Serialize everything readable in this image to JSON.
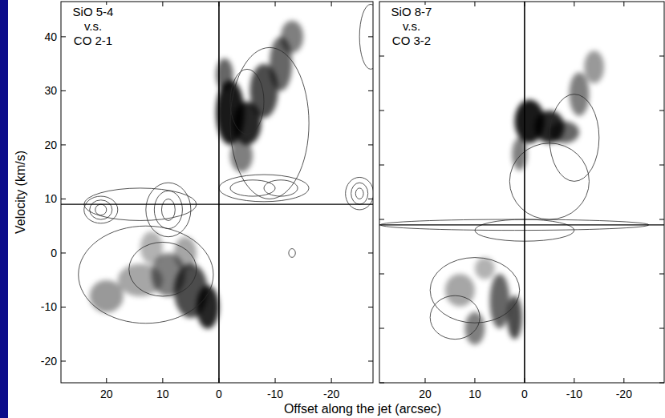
{
  "chart_data": [
    {
      "type": "pv",
      "annotation": [
        "SiO 5-4",
        "v.s.",
        "CO 2-1"
      ],
      "y_label": "Velocity (km/s)",
      "x_label": "Offset along the jet (arcsec)",
      "xlim": [
        28.1,
        -27.4
      ],
      "ylim": [
        -24,
        46.5
      ],
      "xticks": [
        20,
        10,
        0,
        -10,
        -20
      ],
      "yticks": [
        -20,
        -10,
        0,
        10,
        20,
        30,
        40
      ],
      "x_line": 0,
      "y_line": 9,
      "color": "#000000",
      "emission": {
        "cx": [
          5,
          2,
          9,
          14,
          20,
          12,
          6,
          -2,
          -5,
          -8,
          -11,
          -13,
          -4,
          -1
        ],
        "cy": [
          -7,
          -10,
          -4,
          -5,
          -8,
          1,
          0,
          26,
          24,
          30,
          35,
          40,
          18,
          33
        ],
        "rx": [
          3,
          2,
          3,
          4,
          3,
          2,
          2,
          2.5,
          2.5,
          2.5,
          2,
          2,
          2,
          1.5
        ],
        "ry": [
          5,
          4,
          4,
          3,
          3,
          3,
          3,
          6,
          4,
          5,
          5,
          3,
          3,
          3
        ],
        "intensity": [
          0.7,
          0.85,
          0.5,
          0.35,
          0.4,
          0.3,
          0.35,
          0.9,
          0.85,
          0.7,
          0.6,
          0.5,
          0.5,
          0.6
        ]
      },
      "contours": {
        "cx": [
          21,
          21,
          21,
          9,
          9,
          9,
          14,
          -8,
          -6,
          -11,
          -25,
          -25,
          -25,
          13,
          10,
          -9,
          -5,
          -27,
          -13
        ],
        "cy": [
          8,
          8,
          8,
          8,
          8,
          8,
          9,
          12,
          12,
          12,
          11,
          11,
          11,
          -4,
          -3,
          24,
          28,
          40,
          0
        ],
        "rx": [
          3,
          2,
          1,
          4,
          2.5,
          1.2,
          10,
          8,
          4,
          3,
          2.5,
          1.5,
          0.7,
          12,
          6,
          7,
          3,
          2,
          0.6
        ],
        "ry": [
          2.5,
          1.8,
          1,
          5,
          3.5,
          2,
          3,
          2.5,
          1.5,
          1.5,
          3,
          2,
          1,
          9,
          5,
          14,
          6,
          6,
          0.8
        ]
      }
    },
    {
      "type": "pv",
      "annotation": [
        "SiO 8-7",
        "v.s.",
        "CO 3-2"
      ],
      "xlim": [
        29.2,
        -28.1
      ],
      "ylim": [
        -20,
        50
      ],
      "xticks": [
        20,
        10,
        0,
        -10,
        -20
      ],
      "yticks": [
        -20,
        -10,
        0,
        10,
        20,
        30,
        40
      ],
      "tick_labels": "x",
      "x_line": 0,
      "y_line": 9,
      "color": "#000000",
      "emission": {
        "cx": [
          -1,
          -5,
          -8,
          -11,
          -14,
          1,
          5,
          2,
          10,
          13,
          8
        ],
        "cy": [
          28,
          27,
          26,
          33,
          38,
          22,
          -5,
          -8,
          -10,
          -3,
          1
        ],
        "rx": [
          3,
          3,
          3,
          2,
          2,
          1.5,
          2,
          1.5,
          2,
          3,
          2
        ],
        "ry": [
          4,
          3,
          2,
          4,
          3,
          3,
          5,
          4,
          3,
          3,
          2
        ],
        "intensity": [
          0.9,
          0.85,
          0.6,
          0.5,
          0.4,
          0.5,
          0.6,
          0.7,
          0.5,
          0.35,
          0.3
        ]
      },
      "contours": {
        "cx": [
          2,
          0,
          -5,
          -10,
          10,
          14
        ],
        "cy": [
          9,
          8,
          17,
          25,
          -3,
          -8
        ],
        "rx": [
          27,
          10,
          8,
          5,
          9,
          5
        ],
        "ry": [
          1,
          2,
          7,
          8,
          6,
          4
        ]
      }
    }
  ]
}
